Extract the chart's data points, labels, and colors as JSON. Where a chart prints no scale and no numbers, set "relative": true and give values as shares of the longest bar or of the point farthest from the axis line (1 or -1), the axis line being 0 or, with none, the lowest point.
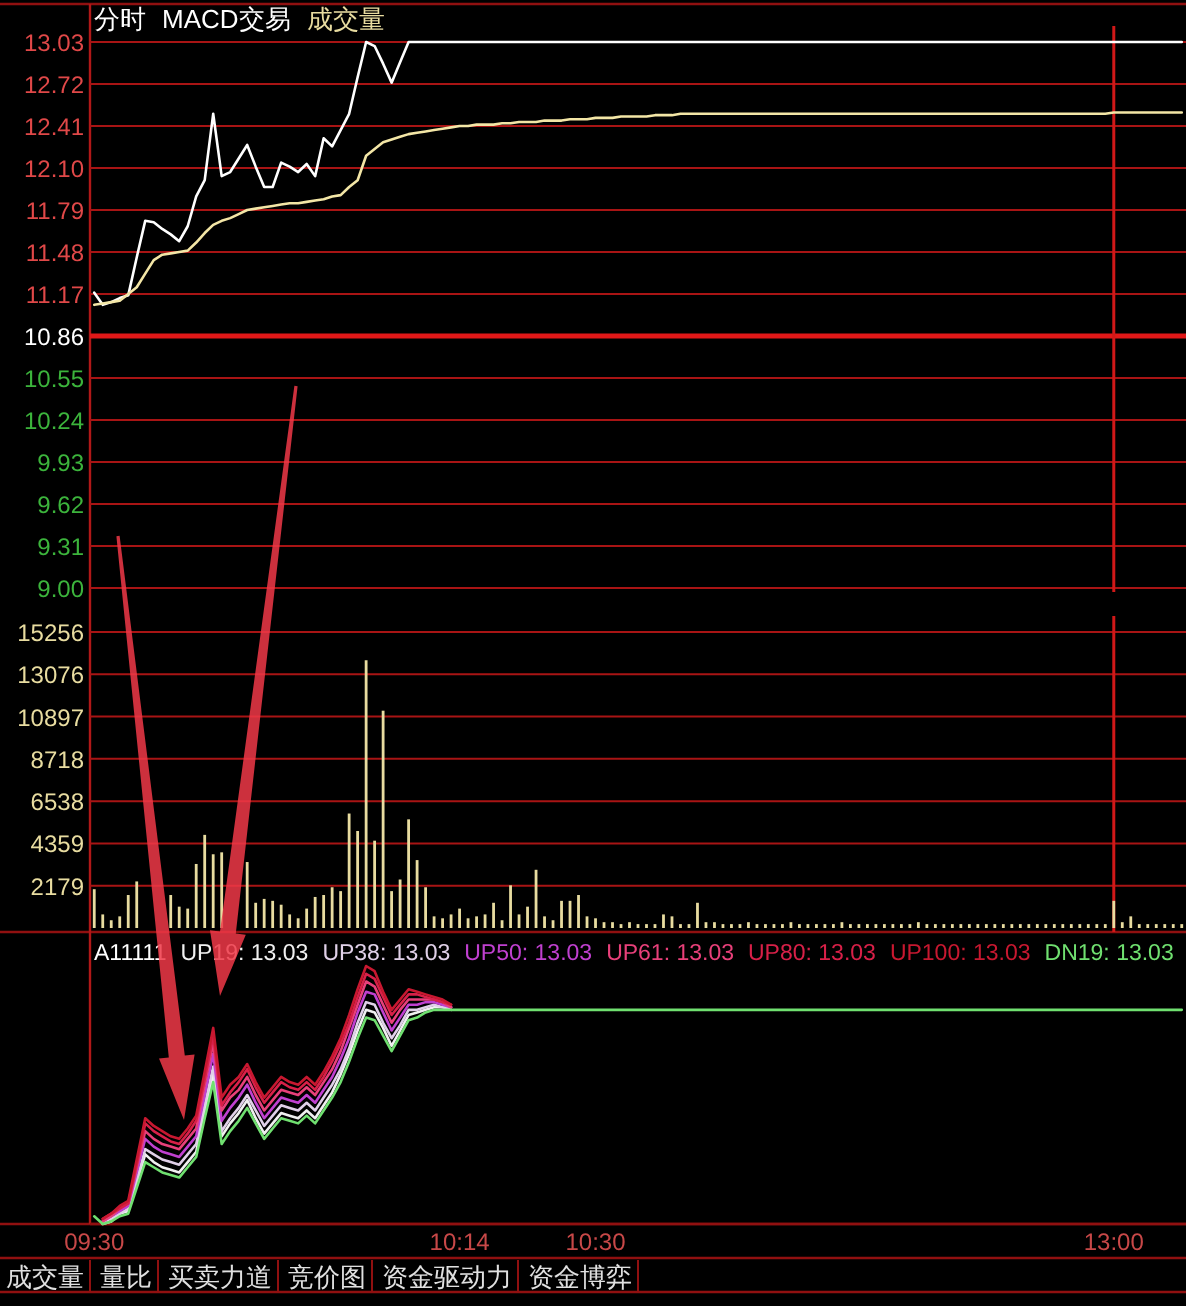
{
  "chart_data": [
    {
      "type": "line",
      "title": "分时",
      "subtitle": "MACD交易",
      "annotations": [
        "成交量"
      ],
      "ylim": [
        9,
        13.03
      ],
      "categories": [
        "09:30",
        null,
        null,
        null,
        null,
        null,
        null,
        null,
        null,
        null,
        null,
        null,
        null,
        null,
        null,
        null,
        null,
        null,
        null,
        null,
        null,
        null,
        null,
        null,
        null,
        null,
        null,
        null,
        null,
        null,
        null,
        null,
        null,
        null,
        null,
        null,
        null,
        null,
        null,
        null,
        null,
        null,
        null,
        "10:14",
        null,
        null,
        null,
        null,
        null,
        null,
        null,
        null,
        null,
        null,
        null,
        null,
        null,
        null,
        null,
        "10:30",
        null,
        null,
        null,
        null,
        null,
        null,
        null,
        null,
        null,
        null,
        null,
        null,
        null,
        null,
        null,
        null,
        null,
        null,
        null,
        null,
        null,
        null,
        null,
        null,
        null,
        null,
        null,
        null,
        null,
        null,
        null,
        null,
        null,
        null,
        null,
        null,
        null,
        null,
        null,
        null,
        null,
        null,
        null,
        null,
        null,
        null,
        null,
        null,
        null,
        null,
        null,
        null,
        null,
        null,
        null,
        null,
        null,
        null,
        null,
        null,
        "13:00",
        null,
        null,
        null,
        null,
        null,
        null,
        null,
        null
      ],
      "yticks": [
        13.03,
        12.72,
        12.41,
        {
          "value": 12.1,
          "label": "12.10"
        },
        11.79,
        11.48,
        11.17,
        10.86,
        10.55,
        10.24,
        9.93,
        9.62,
        9.31,
        {
          "value": 9,
          "label": "9.00"
        }
      ],
      "grid": "y",
      "tick_labels": "y",
      "ref_lines": [
        {
          "axis": "y",
          "value": 10.86,
          "color": "#e01818"
        },
        {
          "axis": "x",
          "value": "13:00",
          "color": "#d01818"
        }
      ],
      "series": [
        {
          "color": "#ffffff",
          "values": [
            11.18,
            11.09,
            11.11,
            11.14,
            11.16,
            11.44,
            11.71,
            11.7,
            11.65,
            11.61,
            11.56,
            11.67,
            11.89,
            12.01,
            12.5,
            12.04,
            12.07,
            12.17,
            12.27,
            12.11,
            11.96,
            11.96,
            12.14,
            12.11,
            12.07,
            12.13,
            12.04,
            12.32,
            12.26,
            12.38,
            12.5,
            12.77,
            13.03,
            13.0,
            12.87,
            12.73,
            12.88,
            13.03,
            13.03,
            13.03,
            13.03,
            13.03,
            13.03,
            13.03,
            13.03,
            13.03,
            13.03,
            13.03,
            13.03,
            13.03,
            13.03,
            13.03,
            13.03,
            13.03,
            13.03,
            13.03,
            13.03,
            13.03,
            13.03,
            13.03,
            13.03,
            13.03,
            13.03,
            13.03,
            13.03,
            13.03,
            13.03,
            13.03,
            13.03,
            13.03,
            13.03,
            13.03,
            13.03,
            13.03,
            13.03,
            13.03,
            13.03,
            13.03,
            13.03,
            13.03,
            13.03,
            13.03,
            13.03,
            13.03,
            13.03,
            13.03,
            13.03,
            13.03,
            13.03,
            13.03,
            13.03,
            13.03,
            13.03,
            13.03,
            13.03,
            13.03,
            13.03,
            13.03,
            13.03,
            13.03,
            13.03,
            13.03,
            13.03,
            13.03,
            13.03,
            13.03,
            13.03,
            13.03,
            13.03,
            13.03,
            13.03,
            13.03,
            13.03,
            13.03,
            13.03,
            13.03,
            13.03,
            13.03,
            13.03,
            13.03,
            13.03,
            13.03,
            13.03,
            13.03,
            13.03,
            13.03,
            13.03,
            13.03,
            13.03
          ]
        },
        {
          "color": "#f3e6a6",
          "values": [
            11.09,
            11.1,
            11.11,
            11.12,
            11.17,
            11.22,
            11.32,
            11.42,
            11.46,
            11.47,
            11.48,
            11.49,
            11.55,
            11.62,
            11.68,
            11.71,
            11.73,
            11.76,
            11.79,
            11.8,
            11.81,
            11.82,
            11.83,
            11.84,
            11.84,
            11.85,
            11.86,
            11.87,
            11.89,
            11.9,
            11.96,
            12.01,
            12.19,
            12.24,
            12.29,
            12.31,
            12.33,
            12.35,
            12.36,
            12.37,
            12.38,
            12.39,
            12.4,
            12.41,
            12.41,
            12.42,
            12.42,
            12.42,
            12.43,
            12.43,
            12.44,
            12.44,
            12.44,
            12.45,
            12.45,
            12.45,
            12.46,
            12.46,
            12.46,
            12.47,
            12.47,
            12.47,
            12.48,
            12.48,
            12.48,
            12.48,
            12.49,
            12.49,
            12.49,
            12.5,
            12.5,
            12.5,
            12.5,
            12.5,
            12.5,
            12.5,
            12.5,
            12.5,
            12.5,
            12.5,
            12.5,
            12.5,
            12.5,
            12.5,
            12.5,
            12.5,
            12.5,
            12.5,
            12.5,
            12.5,
            12.5,
            12.5,
            12.5,
            12.5,
            12.5,
            12.5,
            12.5,
            12.5,
            12.5,
            12.5,
            12.5,
            12.5,
            12.5,
            12.5,
            12.5,
            12.5,
            12.5,
            12.5,
            12.5,
            12.5,
            12.5,
            12.5,
            12.5,
            12.5,
            12.5,
            12.5,
            12.5,
            12.5,
            12.5,
            12.5,
            12.51,
            12.51,
            12.51,
            12.51,
            12.51,
            12.51,
            12.51,
            12.51,
            12.51
          ]
        }
      ]
    },
    {
      "type": "bar",
      "ylim": [
        0,
        15256
      ],
      "yticks": [
        2179,
        4359,
        6538,
        8718,
        10897,
        13076,
        15256
      ],
      "grid": "y",
      "tick_labels": "y",
      "categories": [
        "09:30",
        null,
        null,
        null,
        null,
        null,
        null,
        null,
        null,
        null,
        null,
        null,
        null,
        null,
        null,
        null,
        null,
        null,
        null,
        null,
        null,
        null,
        null,
        null,
        null,
        null,
        null,
        null,
        null,
        null,
        null,
        null,
        null,
        null,
        null,
        null,
        null,
        null,
        null,
        null,
        null,
        null,
        null,
        "10:14",
        null,
        null,
        null,
        null,
        null,
        null,
        null,
        null,
        null,
        null,
        null,
        null,
        null,
        null,
        null,
        "10:30",
        null,
        null,
        null,
        null,
        null,
        null,
        null,
        null,
        null,
        null,
        null,
        null,
        null,
        null,
        null,
        null,
        null,
        null,
        null,
        null,
        null,
        null,
        null,
        null,
        null,
        null,
        null,
        null,
        null,
        null,
        null,
        null,
        null,
        null,
        null,
        null,
        null,
        null,
        null,
        null,
        null,
        null,
        null,
        null,
        null,
        null,
        null,
        null,
        null,
        null,
        null,
        null,
        null,
        null,
        null,
        null,
        null,
        null,
        null,
        null,
        "13:00",
        null,
        null,
        null,
        null,
        null,
        null,
        null,
        null
      ],
      "ref_lines": [
        {
          "axis": "x",
          "value": "13:00",
          "color": "#d01818"
        }
      ],
      "series": [
        {
          "color": "#e8dca0",
          "values": [
            2000,
            700,
            400,
            600,
            1700,
            2400,
            null,
            null,
            null,
            1700,
            1100,
            1000,
            3300,
            4800,
            3800,
            3900,
            null,
            null,
            3400,
            1300,
            1500,
            1400,
            1200,
            700,
            500,
            1000,
            1600,
            1700,
            2100,
            1900,
            5900,
            5000,
            13800,
            4500,
            11200,
            1900,
            2500,
            5600,
            3500,
            2100,
            600,
            500,
            700,
            1000,
            500,
            600,
            700,
            1300,
            400,
            2200,
            700,
            1100,
            3000,
            600,
            400,
            1400,
            1400,
            1700,
            600,
            500,
            300,
            300,
            200,
            300,
            200,
            200,
            200,
            700,
            600,
            200,
            200,
            1300,
            300,
            300,
            200,
            200,
            200,
            300,
            200,
            200,
            200,
            200,
            300,
            200,
            200,
            200,
            200,
            200,
            300,
            200,
            200,
            200,
            200,
            200,
            200,
            200,
            200,
            300,
            200,
            200,
            200,
            200,
            200,
            200,
            200,
            200,
            200,
            200,
            200,
            200,
            200,
            200,
            200,
            200,
            200,
            200,
            200,
            200,
            200,
            200,
            1400,
            300,
            600,
            200,
            200,
            200,
            200,
            200,
            200
          ]
        }
      ]
    },
    {
      "type": "line",
      "title": "A11111",
      "relative": true,
      "legend": "top",
      "tick_labels": "x",
      "categories": [
        "09:30",
        null,
        null,
        null,
        null,
        null,
        null,
        null,
        null,
        null,
        null,
        null,
        null,
        null,
        null,
        null,
        null,
        null,
        null,
        null,
        null,
        null,
        null,
        null,
        null,
        null,
        null,
        null,
        null,
        null,
        null,
        null,
        null,
        null,
        null,
        null,
        null,
        null,
        null,
        null,
        null,
        null,
        null,
        "10:14",
        null,
        null,
        null,
        null,
        null,
        null,
        null,
        null,
        null,
        null,
        null,
        null,
        null,
        null,
        null,
        "10:30",
        null,
        null,
        null,
        null,
        null,
        null,
        null,
        null,
        null,
        null,
        null,
        null,
        null,
        null,
        null,
        null,
        null,
        null,
        null,
        null,
        null,
        null,
        null,
        null,
        null,
        null,
        null,
        null,
        null,
        null,
        null,
        null,
        null,
        null,
        null,
        null,
        null,
        null,
        null,
        null,
        null,
        null,
        null,
        null,
        null,
        null,
        null,
        null,
        null,
        null,
        null,
        null,
        null,
        null,
        null,
        null,
        null,
        null,
        null,
        null,
        "13:00",
        null,
        null,
        null,
        null,
        null,
        null,
        null,
        null
      ],
      "annotations": [
        "成交量",
        "量比",
        "买卖力道",
        "竞价图",
        "资金驱动力",
        "资金博弈"
      ],
      "series": [
        {
          "name": "UP19: 13.03",
          "color": "#f0f0f0",
          "values": [
            null,
            0,
            0.01,
            0.04,
            0.05,
            0.16,
            0.27,
            0.24,
            0.22,
            0.21,
            0.2,
            0.24,
            0.28,
            0.44,
            0.58,
            0.34,
            0.39,
            0.43,
            0.48,
            0.41,
            0.35,
            0.39,
            0.43,
            0.42,
            0.41,
            0.44,
            0.41,
            0.46,
            0.51,
            0.58,
            0.66,
            0.75,
            0.83,
            0.82,
            0.76,
            0.69,
            0.75,
            0.81,
            0.82,
            0.83,
            0.84,
            0.84,
            0.83,
            null,
            null,
            null,
            null,
            null,
            null,
            null,
            null,
            null,
            null,
            null,
            null,
            null,
            null,
            null,
            null,
            null,
            null,
            null,
            null,
            null,
            null,
            null,
            null,
            null,
            null,
            null,
            null,
            null,
            null,
            null,
            null,
            null,
            null,
            null,
            null,
            null,
            null,
            null,
            null,
            null,
            null,
            null,
            null,
            null,
            null,
            null,
            null,
            null,
            null,
            null,
            null,
            null,
            null,
            null,
            null,
            null,
            null,
            null,
            null,
            null,
            null,
            null,
            null,
            null,
            null,
            null,
            null,
            null,
            null,
            null,
            null,
            null,
            null,
            null,
            null,
            null,
            null,
            null,
            null,
            null,
            null,
            null,
            null,
            null,
            null
          ]
        },
        {
          "name": "UP38: 13.03",
          "color": "#e0d0e8",
          "values": [
            null,
            0.01,
            0.02,
            0.04,
            0.06,
            0.17,
            0.29,
            0.27,
            0.25,
            0.24,
            0.23,
            0.27,
            0.31,
            0.46,
            0.61,
            0.36,
            0.41,
            0.45,
            0.5,
            0.44,
            0.38,
            0.42,
            0.46,
            0.45,
            0.44,
            0.47,
            0.44,
            0.49,
            0.54,
            0.6,
            0.68,
            0.78,
            0.86,
            0.85,
            0.78,
            0.72,
            0.77,
            0.83,
            0.83,
            0.84,
            0.85,
            0.84,
            0.84,
            null,
            null,
            null,
            null,
            null,
            null,
            null,
            null,
            null,
            null,
            null,
            null,
            null,
            null,
            null,
            null,
            null,
            null,
            null,
            null,
            null,
            null,
            null,
            null,
            null,
            null,
            null,
            null,
            null,
            null,
            null,
            null,
            null,
            null,
            null,
            null,
            null,
            null,
            null,
            null,
            null,
            null,
            null,
            null,
            null,
            null,
            null,
            null,
            null,
            null,
            null,
            null,
            null,
            null,
            null,
            null,
            null,
            null,
            null,
            null,
            null,
            null,
            null,
            null,
            null,
            null,
            null,
            null,
            null,
            null,
            null,
            null,
            null,
            null,
            null,
            null,
            null,
            null,
            null,
            null,
            null,
            null,
            null,
            null,
            null,
            null
          ]
        },
        {
          "name": "UP50: 13.03",
          "color": "#c040d0",
          "values": [
            null,
            0.01,
            0.03,
            0.05,
            0.07,
            0.2,
            0.33,
            0.3,
            0.28,
            0.27,
            0.26,
            0.3,
            0.34,
            0.5,
            0.66,
            0.4,
            0.45,
            0.49,
            0.54,
            0.47,
            0.41,
            0.45,
            0.49,
            0.48,
            0.47,
            0.5,
            0.47,
            0.52,
            0.57,
            0.64,
            0.72,
            0.82,
            0.9,
            0.89,
            0.82,
            0.75,
            0.8,
            0.85,
            0.85,
            0.86,
            0.86,
            0.85,
            0.84,
            null,
            null,
            null,
            null,
            null,
            null,
            null,
            null,
            null,
            null,
            null,
            null,
            null,
            null,
            null,
            null,
            null,
            null,
            null,
            null,
            null,
            null,
            null,
            null,
            null,
            null,
            null,
            null,
            null,
            null,
            null,
            null,
            null,
            null,
            null,
            null,
            null,
            null,
            null,
            null,
            null,
            null,
            null,
            null,
            null,
            null,
            null,
            null,
            null,
            null,
            null,
            null,
            null,
            null,
            null,
            null,
            null,
            null,
            null,
            null,
            null,
            null,
            null,
            null,
            null,
            null,
            null,
            null,
            null,
            null,
            null,
            null,
            null,
            null,
            null,
            null,
            null,
            null,
            null,
            null,
            null,
            null,
            null,
            null,
            null,
            null
          ]
        },
        {
          "name": "UP61: 13.03",
          "color": "#e8407a",
          "values": [
            null,
            0.01,
            0.03,
            0.06,
            0.08,
            0.22,
            0.36,
            0.33,
            0.31,
            0.3,
            0.29,
            0.33,
            0.37,
            0.54,
            0.7,
            0.44,
            0.49,
            0.52,
            0.57,
            0.5,
            0.44,
            0.48,
            0.52,
            0.51,
            0.5,
            0.53,
            0.5,
            0.55,
            0.6,
            0.67,
            0.76,
            0.85,
            0.94,
            0.92,
            0.85,
            0.78,
            0.83,
            0.87,
            0.87,
            0.87,
            0.87,
            0.86,
            0.84,
            null,
            null,
            null,
            null,
            null,
            null,
            null,
            null,
            null,
            null,
            null,
            null,
            null,
            null,
            null,
            null,
            null,
            null,
            null,
            null,
            null,
            null,
            null,
            null,
            null,
            null,
            null,
            null,
            null,
            null,
            null,
            null,
            null,
            null,
            null,
            null,
            null,
            null,
            null,
            null,
            null,
            null,
            null,
            null,
            null,
            null,
            null,
            null,
            null,
            null,
            null,
            null,
            null,
            null,
            null,
            null,
            null,
            null,
            null,
            null,
            null,
            null,
            null,
            null,
            null,
            null,
            null,
            null,
            null,
            null,
            null,
            null,
            null,
            null,
            null,
            null,
            null,
            null,
            null,
            null,
            null,
            null,
            null,
            null,
            null,
            null
          ]
        },
        {
          "name": "UP80: 13.03",
          "color": "#d82048",
          "values": [
            null,
            0.02,
            0.04,
            0.06,
            0.08,
            0.23,
            0.39,
            0.36,
            0.34,
            0.32,
            0.31,
            0.35,
            0.4,
            0.56,
            0.73,
            0.46,
            0.51,
            0.55,
            0.6,
            0.53,
            0.47,
            0.51,
            0.55,
            0.53,
            0.52,
            0.55,
            0.52,
            0.57,
            0.63,
            0.7,
            0.78,
            0.88,
            0.97,
            0.95,
            0.88,
            0.81,
            0.85,
            0.89,
            0.89,
            0.88,
            0.87,
            0.86,
            0.85,
            null,
            null,
            null,
            null,
            null,
            null,
            null,
            null,
            null,
            null,
            null,
            null,
            null,
            null,
            null,
            null,
            null,
            null,
            null,
            null,
            null,
            null,
            null,
            null,
            null,
            null,
            null,
            null,
            null,
            null,
            null,
            null,
            null,
            null,
            null,
            null,
            null,
            null,
            null,
            null,
            null,
            null,
            null,
            null,
            null,
            null,
            null,
            null,
            null,
            null,
            null,
            null,
            null,
            null,
            null,
            null,
            null,
            null,
            null,
            null,
            null,
            null,
            null,
            null,
            null,
            null,
            null,
            null,
            null,
            null,
            null,
            null,
            null,
            null,
            null,
            null,
            null,
            null,
            null,
            null,
            null,
            null,
            null,
            null,
            null,
            null
          ]
        },
        {
          "name": "UP100: 13.03",
          "color": "#c81830",
          "values": [
            null,
            0.02,
            0.04,
            0.07,
            0.09,
            0.25,
            0.41,
            0.38,
            0.36,
            0.34,
            0.33,
            0.37,
            0.42,
            0.59,
            0.76,
            0.49,
            0.54,
            0.57,
            0.62,
            0.55,
            0.49,
            0.53,
            0.57,
            0.55,
            0.54,
            0.57,
            0.54,
            0.59,
            0.65,
            0.72,
            0.81,
            0.91,
            1,
            0.98,
            0.9,
            0.83,
            0.87,
            0.91,
            0.9,
            0.89,
            0.88,
            0.87,
            0.85,
            null,
            null,
            null,
            null,
            null,
            null,
            null,
            null,
            null,
            null,
            null,
            null,
            null,
            null,
            null,
            null,
            null,
            null,
            null,
            null,
            null,
            null,
            null,
            null,
            null,
            null,
            null,
            null,
            null,
            null,
            null,
            null,
            null,
            null,
            null,
            null,
            null,
            null,
            null,
            null,
            null,
            null,
            null,
            null,
            null,
            null,
            null,
            null,
            null,
            null,
            null,
            null,
            null,
            null,
            null,
            null,
            null,
            null,
            null,
            null,
            null,
            null,
            null,
            null,
            null,
            null,
            null,
            null,
            null,
            null,
            null,
            null,
            null,
            null,
            null,
            null,
            null,
            null,
            null,
            null,
            null,
            null,
            null,
            null,
            null,
            null
          ]
        },
        {
          "name": "DN19: 13.03",
          "color": "#70e070",
          "values": [
            0.03,
            0,
            0.01,
            0.03,
            0.04,
            0.14,
            0.24,
            0.22,
            0.2,
            0.19,
            0.18,
            0.22,
            0.26,
            0.41,
            0.55,
            0.31,
            0.36,
            0.4,
            0.45,
            0.39,
            0.33,
            0.37,
            0.41,
            0.4,
            0.39,
            0.42,
            0.39,
            0.44,
            0.49,
            0.55,
            0.63,
            0.72,
            0.8,
            0.79,
            0.73,
            0.67,
            0.73,
            0.79,
            0.8,
            0.82,
            0.83,
            0.83,
            0.83,
            0.83,
            0.83,
            0.83,
            0.83,
            0.83,
            0.83,
            0.83,
            0.83,
            0.83,
            0.83,
            0.83,
            0.83,
            0.83,
            0.83,
            0.83,
            0.83,
            0.83,
            0.83,
            0.83,
            0.83,
            0.83,
            0.83,
            0.83,
            0.83,
            0.83,
            0.83,
            0.83,
            0.83,
            0.83,
            0.83,
            0.83,
            0.83,
            0.83,
            0.83,
            0.83,
            0.83,
            0.83,
            0.83,
            0.83,
            0.83,
            0.83,
            0.83,
            0.83,
            0.83,
            0.83,
            0.83,
            0.83,
            0.83,
            0.83,
            0.83,
            0.83,
            0.83,
            0.83,
            0.83,
            0.83,
            0.83,
            0.83,
            0.83,
            0.83,
            0.83,
            0.83,
            0.83,
            0.83,
            0.83,
            0.83,
            0.83,
            0.83,
            0.83,
            0.83,
            0.83,
            0.83,
            0.83,
            0.83,
            0.83,
            0.83,
            0.83,
            0.83,
            0.83,
            0.83,
            0.83,
            0.83,
            0.83,
            0.83,
            0.83,
            0.83,
            0.83
          ]
        }
      ]
    }
  ]
}
